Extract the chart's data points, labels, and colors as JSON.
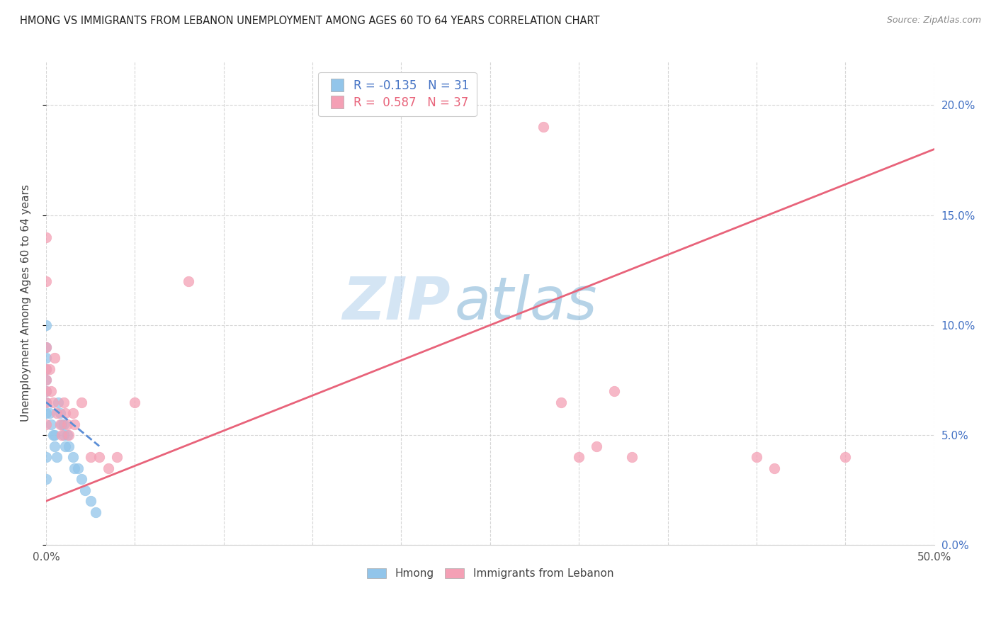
{
  "title": "HMONG VS IMMIGRANTS FROM LEBANON UNEMPLOYMENT AMONG AGES 60 TO 64 YEARS CORRELATION CHART",
  "source": "Source: ZipAtlas.com",
  "ylabel": "Unemployment Among Ages 60 to 64 years",
  "xlim": [
    0.0,
    0.5
  ],
  "ylim": [
    0.0,
    0.22
  ],
  "hmong_color": "#92C5EA",
  "lebanon_color": "#F4A0B5",
  "hmong_line_color": "#5B8ED6",
  "lebanon_line_color": "#E8637A",
  "hmong_R": -0.135,
  "hmong_N": 31,
  "lebanon_R": 0.587,
  "lebanon_N": 37,
  "hmong_scatter_x": [
    0.0,
    0.0,
    0.0,
    0.0,
    0.0,
    0.0,
    0.0,
    0.0,
    0.0,
    0.0,
    0.002,
    0.003,
    0.004,
    0.005,
    0.005,
    0.006,
    0.007,
    0.008,
    0.009,
    0.01,
    0.01,
    0.011,
    0.012,
    0.013,
    0.015,
    0.016,
    0.018,
    0.02,
    0.022,
    0.025,
    0.028
  ],
  "hmong_scatter_y": [
    0.1,
    0.09,
    0.085,
    0.08,
    0.075,
    0.07,
    0.065,
    0.06,
    0.04,
    0.03,
    0.06,
    0.055,
    0.05,
    0.05,
    0.045,
    0.04,
    0.065,
    0.06,
    0.055,
    0.055,
    0.05,
    0.045,
    0.05,
    0.045,
    0.04,
    0.035,
    0.035,
    0.03,
    0.025,
    0.02,
    0.015
  ],
  "lebanon_scatter_x": [
    0.0,
    0.0,
    0.0,
    0.0,
    0.0,
    0.002,
    0.003,
    0.004,
    0.005,
    0.006,
    0.008,
    0.009,
    0.01,
    0.011,
    0.012,
    0.013,
    0.015,
    0.016,
    0.02,
    0.025,
    0.03,
    0.035,
    0.04,
    0.05,
    0.08,
    0.28,
    0.29,
    0.3,
    0.31,
    0.32,
    0.33,
    0.4,
    0.41,
    0.45,
    0.0,
    0.0,
    0.0
  ],
  "lebanon_scatter_y": [
    0.14,
    0.12,
    0.09,
    0.08,
    0.07,
    0.08,
    0.07,
    0.065,
    0.085,
    0.06,
    0.055,
    0.05,
    0.065,
    0.06,
    0.055,
    0.05,
    0.06,
    0.055,
    0.065,
    0.04,
    0.04,
    0.035,
    0.04,
    0.065,
    0.12,
    0.19,
    0.065,
    0.04,
    0.045,
    0.07,
    0.04,
    0.04,
    0.035,
    0.04,
    0.075,
    0.065,
    0.055
  ],
  "watermark_zip": "ZIP",
  "watermark_atlas": "atlas",
  "background_color": "#FFFFFF",
  "grid_color": "#CCCCCC"
}
